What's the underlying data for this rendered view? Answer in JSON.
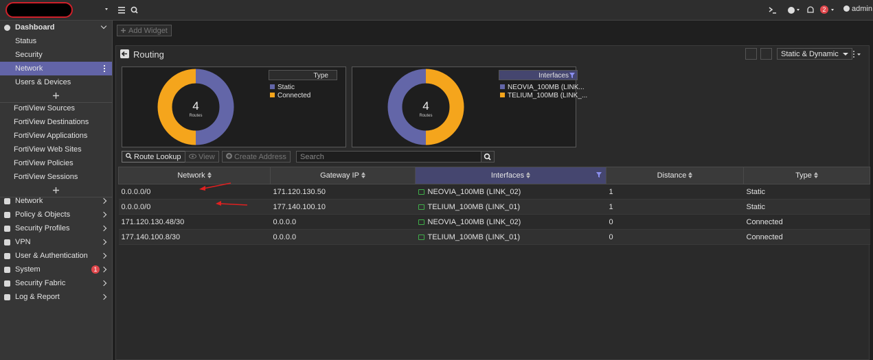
{
  "topbar": {
    "user": "admin",
    "notifications": 2
  },
  "sidebar": {
    "dashboard": {
      "label": "Dashboard",
      "items": [
        "Status",
        "Security",
        "Network",
        "Users & Devices"
      ]
    },
    "fortiview": [
      "FortiView Sources",
      "FortiView Destinations",
      "FortiView Applications",
      "FortiView Web Sites",
      "FortiView Policies",
      "FortiView Sessions"
    ],
    "menu": [
      "Network",
      "Policy & Objects",
      "Security Profiles",
      "VPN",
      "User & Authentication",
      "System",
      "Security Fabric",
      "Log & Report"
    ],
    "system_badge": 1
  },
  "toolbar": {
    "add_widget": "Add Widget"
  },
  "widget": {
    "title": "Routing",
    "filter": "Static & Dynamic",
    "charts": [
      {
        "legend_title": "Type",
        "total": 4,
        "total_label": "Routes",
        "segments": [
          {
            "label": "Static",
            "value": 2,
            "color": "#6366a8"
          },
          {
            "label": "Connected",
            "value": 2,
            "color": "#f5a51c"
          }
        ]
      },
      {
        "legend_title": "Interfaces",
        "total": 4,
        "total_label": "Routes",
        "segments": [
          {
            "label": "NEOVIA_100MB (LINK...",
            "value": 2,
            "color": "#6366a8"
          },
          {
            "label": "TELIUM_100MB (LINK_...",
            "value": 2,
            "color": "#f5a51c"
          }
        ]
      }
    ],
    "actions": {
      "route_lookup": "Route Lookup",
      "view": "View",
      "create_address": "Create Address",
      "search_placeholder": "Search"
    },
    "table": {
      "columns": [
        "Network",
        "Gateway IP",
        "Interfaces",
        "Distance",
        "Type"
      ],
      "rows": [
        [
          "0.0.0.0/0",
          "171.120.130.50",
          "NEOVIA_100MB (LINK_02)",
          1,
          "Static"
        ],
        [
          "0.0.0.0/0",
          "177.140.100.10",
          "TELIUM_100MB (LINK_01)",
          1,
          "Static"
        ],
        [
          "171.120.130.48/30",
          "0.0.0.0",
          "NEOVIA_100MB (LINK_02)",
          0,
          "Connected"
        ],
        [
          "177.140.100.8/30",
          "0.0.0.0",
          "TELIUM_100MB (LINK_01)",
          0,
          "Connected"
        ]
      ]
    }
  }
}
